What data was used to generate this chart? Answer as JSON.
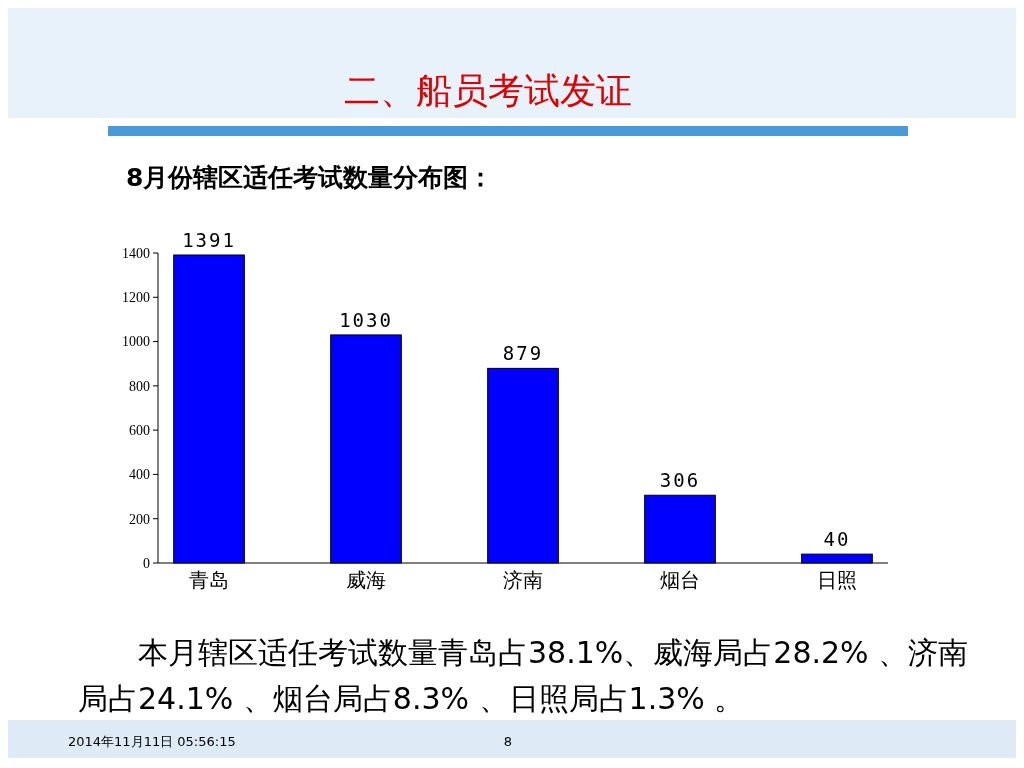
{
  "chart_data": {
    "type": "bar",
    "title": "二、船员考试发证",
    "subtitle": "8月份辖区适任考试数量分布图：",
    "categories": [
      "青岛",
      "威海",
      "济南",
      "烟台",
      "日照"
    ],
    "values": [
      1391,
      1030,
      879,
      306,
      40
    ],
    "color": "#0000ff",
    "ylim": [
      0,
      1400
    ],
    "yticks": [
      0,
      200,
      400,
      600,
      800,
      1000,
      1200,
      1400
    ],
    "data_labels": true,
    "annotations": [
      "本月辖区适任考试数量青岛占38.1%、威海局占28.2% 、济南局占24.1% 、烟台局占8.3% 、日照局占1.3% 。",
      "2014年11月11日  05:56:15",
      "8"
    ]
  }
}
